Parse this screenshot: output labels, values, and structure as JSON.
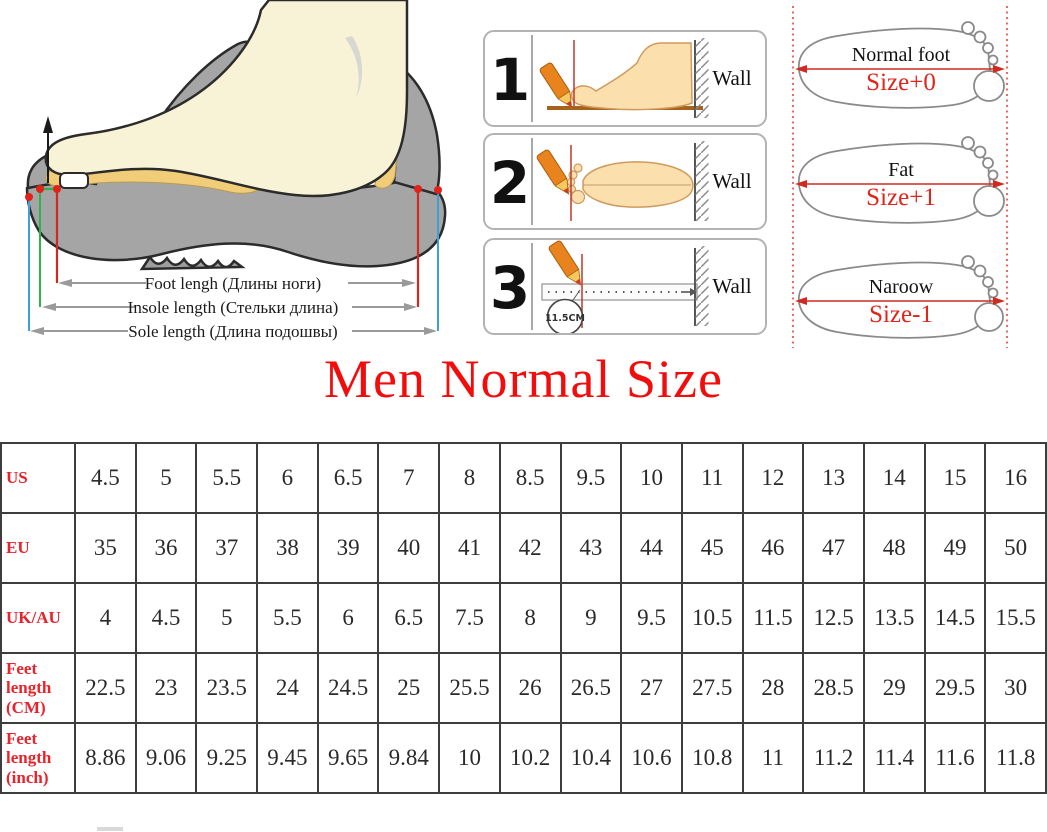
{
  "title": "Men Normal Size",
  "measure_diagram": {
    "foot_length_label": "Foot lengh (Длины ноги)",
    "insole_length_label": "Insole length (Стельки длина)",
    "sole_length_label": "Sole length (Длина подошвы)"
  },
  "steps": [
    {
      "number": "1",
      "wall_label": "Wall"
    },
    {
      "number": "2",
      "wall_label": "Wall"
    },
    {
      "number": "3",
      "wall_label": "Wall",
      "ruler_mark": "11.5CM"
    }
  ],
  "foot_types": [
    {
      "name": "Normal foot",
      "size_adjust": "Size+0"
    },
    {
      "name": "Fat",
      "size_adjust": "Size+1"
    },
    {
      "name": "Naroow",
      "size_adjust": "Size-1"
    }
  ],
  "size_table": {
    "rows": [
      {
        "label": "US",
        "values": [
          "4.5",
          "5",
          "5.5",
          "6",
          "6.5",
          "7",
          "8",
          "8.5",
          "9.5",
          "10",
          "11",
          "12",
          "13",
          "14",
          "15",
          "16"
        ]
      },
      {
        "label": "EU",
        "values": [
          "35",
          "36",
          "37",
          "38",
          "39",
          "40",
          "41",
          "42",
          "43",
          "44",
          "45",
          "46",
          "47",
          "48",
          "49",
          "50"
        ]
      },
      {
        "label": "UK/AU",
        "values": [
          "4",
          "4.5",
          "5",
          "5.5",
          "6",
          "6.5",
          "7.5",
          "8",
          "9",
          "9.5",
          "10.5",
          "11.5",
          "12.5",
          "13.5",
          "14.5",
          "15.5"
        ]
      },
      {
        "label": "Feet length (CM)",
        "values": [
          "22.5",
          "23",
          "23.5",
          "24",
          "24.5",
          "25",
          "25.5",
          "26",
          "26.5",
          "27",
          "27.5",
          "28",
          "28.5",
          "29",
          "29.5",
          "30"
        ]
      },
      {
        "label": "Feet length (inch)",
        "values": [
          "8.86",
          "9.06",
          "9.25",
          "9.45",
          "9.65",
          "9.84",
          "10",
          "10.2",
          "10.4",
          "10.6",
          "10.8",
          "11",
          "11.2",
          "11.4",
          "11.6",
          "11.8"
        ]
      }
    ]
  },
  "colors": {
    "title_red": "#f20d0d",
    "table_header_red": "#e8232b",
    "measure_red": "#cf2a20",
    "measure_green": "#2db34a",
    "measure_blue": "#3f9fd8",
    "shoe_gray": "#a5a5a5",
    "insole_yellow": "#f2cd79",
    "foot_cream": "#f8f3d7",
    "skin_tone": "#fbe0ae",
    "pencil_orange": "#e8831d",
    "table_border": "#3d3d3d"
  }
}
